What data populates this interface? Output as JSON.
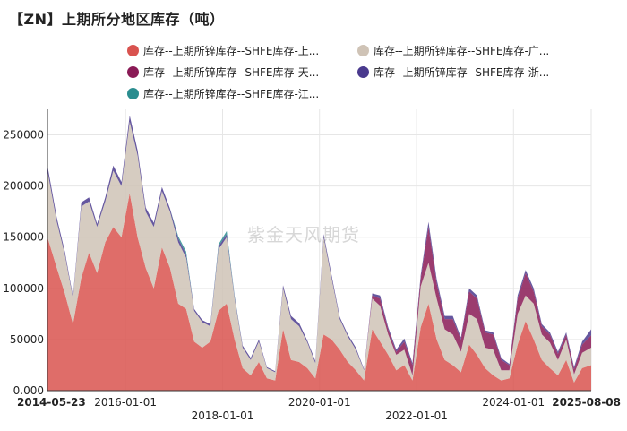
{
  "page_title": "【ZN】上期所分地区库存（吨）",
  "watermark": "紫金天风期货",
  "chart_data": {
    "type": "area",
    "stacked": true,
    "title": "【ZN】上期所分地区库存（吨）",
    "xlabel": "",
    "ylabel": "",
    "ylim": [
      0,
      275000
    ],
    "yticks": [
      0,
      50000,
      100000,
      150000,
      200000,
      250000
    ],
    "ytick_labels": [
      "0.000",
      "50000",
      "100000",
      "150000",
      "200000",
      "250000"
    ],
    "x_start": "2014-05-23",
    "x_end": "2025-08-08",
    "xticks": [
      "2014-05-23",
      "2016-01-01",
      "2018-01-01",
      "2020-01-01",
      "2022-01-01",
      "2024-01-01",
      "2025-08-08"
    ],
    "xtick_bold": [
      "2014-05-23",
      "2025-08-08"
    ],
    "grid": true,
    "legend_position": "top",
    "x": [
      "2014-05-23",
      "2014-08-01",
      "2014-10-01",
      "2014-12-01",
      "2015-02-01",
      "2015-04-01",
      "2015-06-01",
      "2015-08-01",
      "2015-10-01",
      "2015-12-01",
      "2016-02-01",
      "2016-04-01",
      "2016-06-01",
      "2016-08-01",
      "2016-10-01",
      "2016-12-01",
      "2017-02-01",
      "2017-04-01",
      "2017-06-01",
      "2017-08-01",
      "2017-10-01",
      "2017-12-01",
      "2018-02-01",
      "2018-04-01",
      "2018-06-01",
      "2018-08-01",
      "2018-10-01",
      "2018-12-01",
      "2019-02-01",
      "2019-04-01",
      "2019-06-01",
      "2019-08-01",
      "2019-10-01",
      "2019-12-01",
      "2020-02-01",
      "2020-04-01",
      "2020-06-01",
      "2020-08-01",
      "2020-10-01",
      "2020-12-01",
      "2021-02-01",
      "2021-04-01",
      "2021-06-01",
      "2021-08-01",
      "2021-10-01",
      "2021-12-01",
      "2022-02-01",
      "2022-04-01",
      "2022-06-01",
      "2022-08-01",
      "2022-10-01",
      "2022-12-01",
      "2023-02-01",
      "2023-04-01",
      "2023-06-01",
      "2023-08-01",
      "2023-10-01",
      "2023-12-01",
      "2024-02-01",
      "2024-04-01",
      "2024-06-01",
      "2024-08-01",
      "2024-10-01",
      "2024-12-01",
      "2025-02-01",
      "2025-04-01",
      "2025-06-01",
      "2025-08-08"
    ],
    "series": [
      {
        "name": "库存--上期所锌库存--SHFE库存-上...",
        "color": "#d9534f",
        "values": [
          150000,
          120000,
          95000,
          65000,
          110000,
          135000,
          115000,
          145000,
          160000,
          150000,
          193000,
          150000,
          120000,
          100000,
          140000,
          120000,
          85000,
          80000,
          48000,
          42000,
          48000,
          78000,
          85000,
          50000,
          22000,
          15000,
          28000,
          12000,
          10000,
          60000,
          30000,
          28000,
          22000,
          12000,
          55000,
          50000,
          40000,
          28000,
          20000,
          10000,
          60000,
          48000,
          35000,
          20000,
          25000,
          10000,
          62000,
          85000,
          50000,
          30000,
          25000,
          18000,
          45000,
          35000,
          22000,
          15000,
          10000,
          12000,
          45000,
          68000,
          50000,
          30000,
          22000,
          15000,
          30000,
          8000,
          22000,
          25000
        ]
      },
      {
        "name": "库存--上期所锌库存--SHFE库存-广...",
        "color": "#cfc3b6",
        "values": [
          65000,
          45000,
          38000,
          25000,
          70000,
          50000,
          45000,
          40000,
          55000,
          50000,
          70000,
          80000,
          55000,
          60000,
          55000,
          55000,
          60000,
          50000,
          30000,
          25000,
          15000,
          60000,
          65000,
          40000,
          20000,
          15000,
          20000,
          10000,
          8000,
          40000,
          40000,
          35000,
          25000,
          15000,
          95000,
          60000,
          30000,
          25000,
          20000,
          10000,
          30000,
          35000,
          20000,
          15000,
          15000,
          5000,
          40000,
          40000,
          40000,
          30000,
          30000,
          20000,
          30000,
          35000,
          20000,
          25000,
          10000,
          8000,
          30000,
          25000,
          35000,
          25000,
          25000,
          15000,
          20000,
          8000,
          15000,
          17000
        ]
      },
      {
        "name": "库存--上期所锌库存--SHFE库存-天...",
        "color": "#8a1a56",
        "values": [
          0,
          0,
          0,
          0,
          0,
          0,
          0,
          0,
          0,
          0,
          0,
          0,
          0,
          0,
          0,
          0,
          0,
          0,
          0,
          0,
          0,
          0,
          0,
          0,
          0,
          0,
          0,
          0,
          0,
          0,
          0,
          0,
          0,
          0,
          0,
          0,
          0,
          0,
          0,
          0,
          3000,
          7000,
          5000,
          3000,
          8000,
          10000,
          8000,
          35000,
          15000,
          10000,
          15000,
          12000,
          22000,
          20000,
          15000,
          15000,
          10000,
          5000,
          15000,
          22000,
          12000,
          8000,
          8000,
          6000,
          5000,
          5000,
          8000,
          12000
        ]
      },
      {
        "name": "库存--上期所锌库存--SHFE库存-浙...",
        "color": "#4a3a8e",
        "values": [
          5000,
          4000,
          3000,
          2000,
          4000,
          4000,
          3000,
          4000,
          5000,
          4000,
          6000,
          5000,
          4000,
          4000,
          4000,
          3000,
          4000,
          3000,
          2000,
          2000,
          2000,
          3000,
          3000,
          2000,
          2000,
          2000,
          2000,
          1000,
          1000,
          3000,
          3000,
          3000,
          2000,
          2000,
          3000,
          3000,
          2000,
          2000,
          2000,
          1000,
          2000,
          3000,
          2000,
          2000,
          3000,
          2000,
          3000,
          5000,
          4000,
          3000,
          3000,
          2000,
          3000,
          3000,
          2000,
          2000,
          2000,
          1000,
          3000,
          3000,
          3000,
          2000,
          2000,
          2000,
          2000,
          2000,
          3000,
          6000
        ]
      },
      {
        "name": "库存--上期所锌库存--SHFE库存-江...",
        "color": "#2a8d8f",
        "values": [
          0,
          0,
          0,
          0,
          0,
          0,
          0,
          0,
          0,
          0,
          0,
          0,
          0,
          0,
          0,
          0,
          2000,
          3000,
          0,
          0,
          0,
          2000,
          3000,
          1000,
          0,
          0,
          0,
          0,
          0,
          0,
          0,
          0,
          0,
          0,
          0,
          0,
          0,
          0,
          0,
          0,
          0,
          0,
          0,
          0,
          0,
          0,
          0,
          0,
          0,
          0,
          0,
          0,
          0,
          0,
          0,
          0,
          0,
          0,
          0,
          0,
          0,
          0,
          0,
          0,
          0,
          0,
          0,
          0
        ]
      }
    ]
  }
}
